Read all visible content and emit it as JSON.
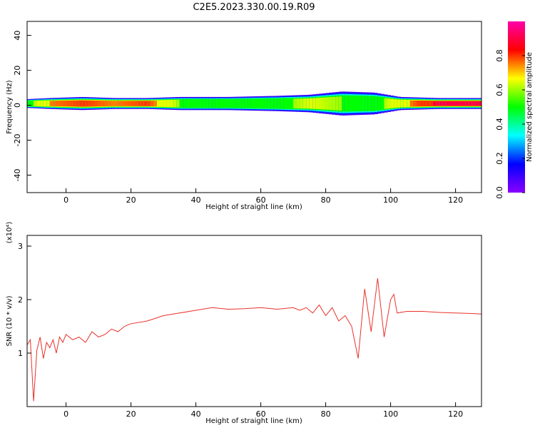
{
  "figure": {
    "title": "C2E5.2023.330.00.19.R09"
  },
  "chart_data": [
    {
      "type": "heatmap",
      "name": "spectrogram",
      "xlabel": "Height of straight line (km)",
      "ylabel": "Frequency (Hz)",
      "xlim": [
        -12,
        128
      ],
      "ylim": [
        -50,
        48
      ],
      "xticks": [
        0,
        20,
        40,
        60,
        80,
        100,
        120
      ],
      "yticks": [
        -40,
        -20,
        0,
        20,
        40
      ],
      "band_center_hz": 1,
      "band": [
        {
          "x": -12,
          "halfwidth": 2.0,
          "amp": 0.55
        },
        {
          "x": -5,
          "halfwidth": 2.5,
          "amp": 0.75
        },
        {
          "x": 5,
          "halfwidth": 3.0,
          "amp": 0.8
        },
        {
          "x": 15,
          "halfwidth": 2.5,
          "amp": 0.75
        },
        {
          "x": 25,
          "halfwidth": 2.5,
          "amp": 0.8
        },
        {
          "x": 35,
          "halfwidth": 3.0,
          "amp": 0.6
        },
        {
          "x": 50,
          "halfwidth": 3.0,
          "amp": 0.5
        },
        {
          "x": 65,
          "halfwidth": 3.5,
          "amp": 0.55
        },
        {
          "x": 75,
          "halfwidth": 4.0,
          "amp": 0.65
        },
        {
          "x": 85,
          "halfwidth": 5.5,
          "amp": 0.6
        },
        {
          "x": 95,
          "halfwidth": 5.0,
          "amp": 0.55
        },
        {
          "x": 103,
          "halfwidth": 3.0,
          "amp": 0.7
        },
        {
          "x": 115,
          "halfwidth": 2.5,
          "amp": 0.9
        },
        {
          "x": 128,
          "halfwidth": 2.5,
          "amp": 0.9
        }
      ],
      "colorbar": {
        "label": "Normalized spectral amplitude",
        "range": [
          0.0,
          1.0
        ],
        "ticks": [
          "0.0",
          "0.2",
          "0.4",
          "0.6",
          "0.8"
        ],
        "tick_values": [
          0.0,
          0.2,
          0.4,
          0.6,
          0.8
        ],
        "colors": [
          "#8b00ff",
          "#0000ff",
          "#00ffff",
          "#00ff00",
          "#ffff00",
          "#ff0000",
          "#ff00aa"
        ]
      }
    },
    {
      "type": "line",
      "name": "snr",
      "xlabel": "Height of straight line (km)",
      "ylabel": "SNR (10 * v/v)",
      "scale_label": "(x10⁴)",
      "xlim": [
        -12,
        128
      ],
      "ylim": [
        0,
        3.2
      ],
      "xticks": [
        0,
        20,
        40,
        60,
        80,
        100,
        120
      ],
      "yticks": [
        1,
        2,
        3
      ],
      "color": "#e8322a",
      "series": [
        {
          "x": [
            -12,
            -11,
            -10,
            -9,
            -8,
            -7,
            -6,
            -5,
            -4,
            -3,
            -2,
            -1,
            0,
            2,
            4,
            6,
            8,
            10,
            12,
            14,
            16,
            18,
            20,
            25,
            30,
            35,
            40,
            45,
            50,
            55,
            60,
            65,
            70,
            72,
            74,
            76,
            78,
            80,
            82,
            84,
            86,
            88,
            90,
            92,
            94,
            96,
            98,
            100,
            101,
            102,
            105,
            110,
            115,
            120,
            125,
            128
          ],
          "y": [
            1.15,
            1.25,
            0.1,
            1.05,
            1.3,
            0.9,
            1.2,
            1.1,
            1.25,
            1.0,
            1.3,
            1.2,
            1.35,
            1.25,
            1.3,
            1.2,
            1.4,
            1.3,
            1.35,
            1.45,
            1.4,
            1.5,
            1.55,
            1.6,
            1.7,
            1.75,
            1.8,
            1.85,
            1.82,
            1.83,
            1.85,
            1.82,
            1.85,
            1.8,
            1.85,
            1.75,
            1.9,
            1.7,
            1.85,
            1.6,
            1.7,
            1.5,
            0.9,
            2.2,
            1.4,
            2.4,
            1.3,
            2.0,
            2.1,
            1.75,
            1.78,
            1.78,
            1.76,
            1.75,
            1.74,
            1.73
          ]
        }
      ]
    }
  ]
}
